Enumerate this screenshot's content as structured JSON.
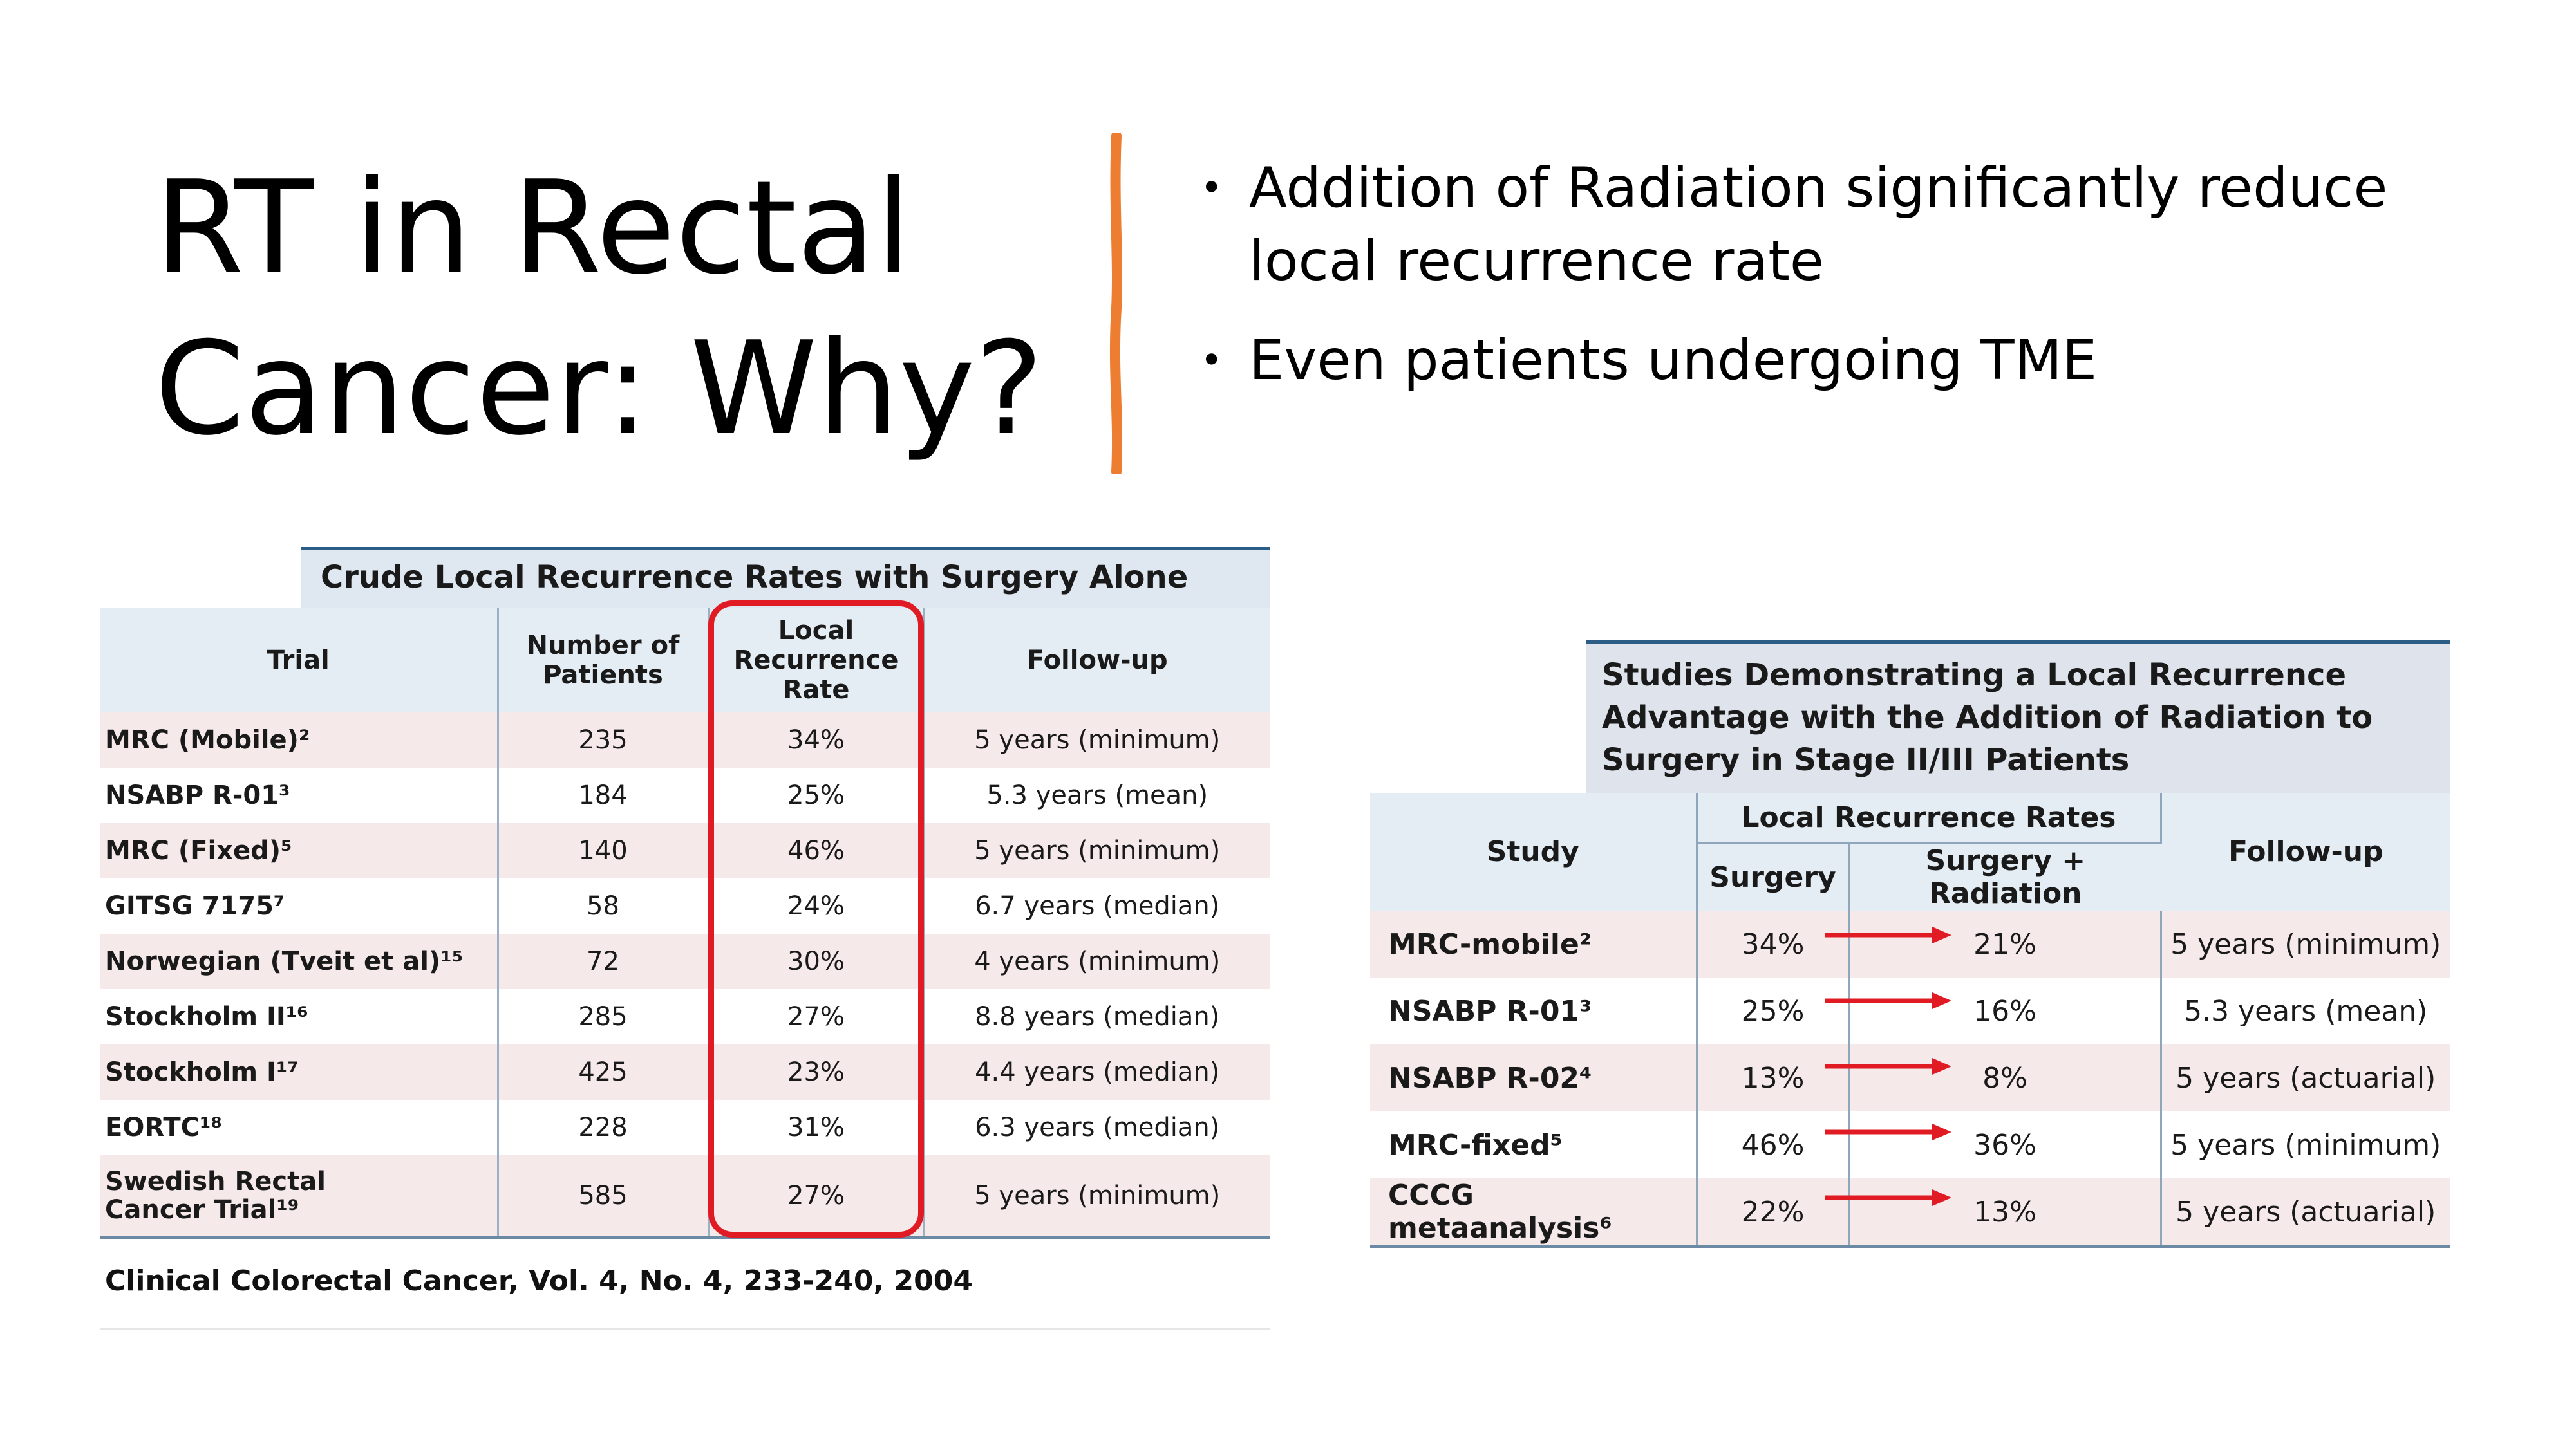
{
  "title": {
    "line1": "RT in Rectal",
    "line2": "Cancer: Why?"
  },
  "colors": {
    "accent": "#ed7d31",
    "highlight": "#e01b24",
    "header_bg": "#e4ecf4",
    "row_tint": "#f6e9ea"
  },
  "bullets": [
    "Addition of Radiation significantly reduce local recurrence rate",
    "Even patients undergoing TME"
  ],
  "table1": {
    "title": "Crude Local Recurrence Rates with Surgery Alone",
    "headers": {
      "trial": "Trial",
      "patients": "Number of Patients",
      "rate": "Local Recurrence Rate",
      "followup": "Follow-up"
    },
    "rows": [
      {
        "trial": "MRC (Mobile)²",
        "patients": "235",
        "rate": "34%",
        "followup": "5 years (minimum)"
      },
      {
        "trial": "NSABP R-01³",
        "patients": "184",
        "rate": "25%",
        "followup": "5.3 years (mean)"
      },
      {
        "trial": "MRC (Fixed)⁵",
        "patients": "140",
        "rate": "46%",
        "followup": "5 years (minimum)"
      },
      {
        "trial": "GITSG 7175⁷",
        "patients": "58",
        "rate": "24%",
        "followup": "6.7 years (median)"
      },
      {
        "trial": "Norwegian (Tveit et al)¹⁵",
        "patients": "72",
        "rate": "30%",
        "followup": "4 years (minimum)"
      },
      {
        "trial": "Stockholm II¹⁶",
        "patients": "285",
        "rate": "27%",
        "followup": "8.8 years (median)"
      },
      {
        "trial": "Stockholm I¹⁷",
        "patients": "425",
        "rate": "23%",
        "followup": "4.4 years (median)"
      },
      {
        "trial": "EORTC¹⁸",
        "patients": "228",
        "rate": "31%",
        "followup": "6.3 years (median)"
      },
      {
        "trial_line1": "Swedish Rectal",
        "trial_line2": "Cancer Trial¹⁹",
        "patients": "585",
        "rate": "27%",
        "followup": "5 years (minimum)"
      }
    ],
    "citation": "Clinical Colorectal Cancer, Vol. 4, No. 4, 233-240, 2004"
  },
  "table2": {
    "title_lines": [
      "Studies Demonstrating a Local Recurrence",
      "Advantage with the Addition of Radiation to",
      "Surgery in Stage II/III Patients"
    ],
    "headers": {
      "study": "Study",
      "lrr": "Local Recurrence Rates",
      "surgery": "Surgery",
      "surgery_rad": "Surgery + Radiation",
      "followup": "Follow-up"
    },
    "rows": [
      {
        "study": "MRC-mobile²",
        "surgery": "34%",
        "surgery_rad": "21%",
        "followup": "5 years (minimum)"
      },
      {
        "study": "NSABP R-01³",
        "surgery": "25%",
        "surgery_rad": "16%",
        "followup": "5.3 years (mean)"
      },
      {
        "study": "NSABP R-02⁴",
        "surgery": "13%",
        "surgery_rad": "8%",
        "followup": "5 years (actuarial)"
      },
      {
        "study": "MRC-fixed⁵",
        "surgery": "46%",
        "surgery_rad": "36%",
        "followup": "5 years (minimum)"
      },
      {
        "study": "CCCG metaanalysis⁶",
        "surgery": "22%",
        "surgery_rad": "13%",
        "followup": "5 years (actuarial)"
      }
    ]
  }
}
